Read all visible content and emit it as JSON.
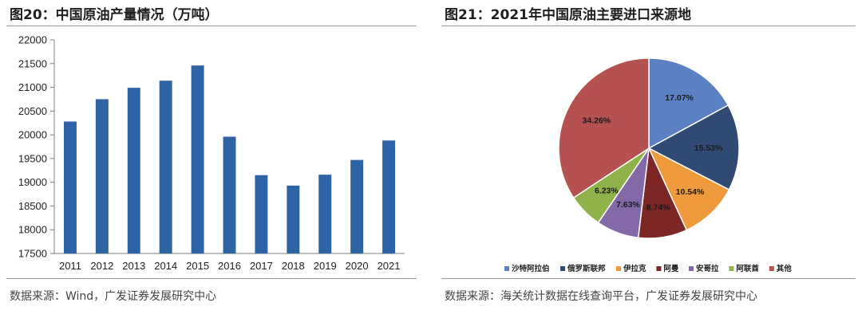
{
  "chart_data": [
    {
      "type": "bar",
      "title": "图20：中国原油产量情况（万吨）",
      "categories": [
        "2011",
        "2012",
        "2013",
        "2014",
        "2015",
        "2016",
        "2017",
        "2018",
        "2019",
        "2020",
        "2021"
      ],
      "values": [
        20280,
        20750,
        20990,
        21140,
        21460,
        19960,
        19150,
        18930,
        19160,
        19470,
        19880
      ],
      "ylim": [
        17500,
        22000
      ],
      "yticks": [
        17500,
        18000,
        18500,
        19000,
        19500,
        20000,
        20500,
        21000,
        21500,
        22000
      ],
      "xlabel": "",
      "ylabel": "",
      "bar_color": "#2e64a6",
      "source": "数据来源：Wind，广发证券发展研究中心"
    },
    {
      "type": "pie",
      "title": "图21：2021年中国原油主要进口来源地",
      "labels": [
        "沙特阿拉伯",
        "俄罗斯联邦",
        "伊拉克",
        "阿曼",
        "安哥拉",
        "阿联酋",
        "其他"
      ],
      "values": [
        17.07,
        15.53,
        10.54,
        8.74,
        7.63,
        6.23,
        34.26
      ],
      "value_labels": [
        "17.07%",
        "15.53%",
        "10.54%",
        "8.74%",
        "7.63%",
        "6.23%",
        "34.26%"
      ],
      "colors": [
        "#5b80c4",
        "#2f4a73",
        "#ef9a3c",
        "#7c2626",
        "#8369a8",
        "#8fb34a",
        "#b5514f"
      ],
      "legend_position": "bottom",
      "source": "数据来源：海关统计数据在线查询平台，广发证券发展研究中心"
    }
  ]
}
